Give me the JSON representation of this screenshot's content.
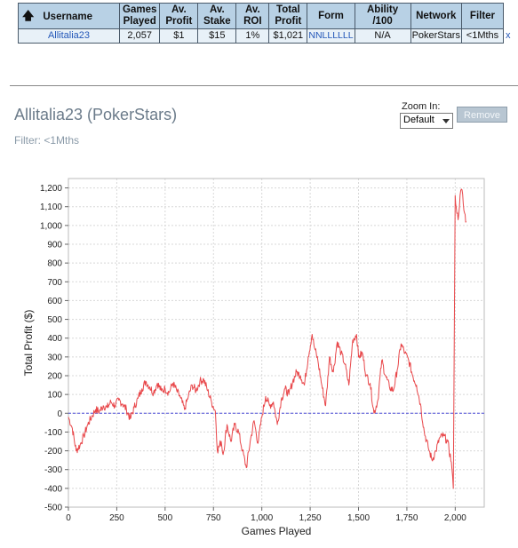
{
  "table": {
    "headers": {
      "username": "Username",
      "games_played": [
        "Games",
        "Played"
      ],
      "av_profit": [
        "Av.",
        "Profit"
      ],
      "av_stake": [
        "Av.",
        "Stake"
      ],
      "av_roi": [
        "Av.",
        "ROI"
      ],
      "total_profit": [
        "Total",
        "Profit"
      ],
      "form": "Form",
      "ability": "Ability /100",
      "network": "Network",
      "filter": "Filter"
    },
    "row": {
      "username": "Allitalia23",
      "games_played": "2,057",
      "av_profit": "$1",
      "av_stake": "$15",
      "av_roi": "1%",
      "total_profit": "$1,021",
      "form": "NNLLLLLL",
      "ability": "N/A",
      "network": "PokerStars",
      "filter": "<1Mths",
      "remove": "x"
    }
  },
  "chart_header": {
    "title": "Allitalia23 (PokerStars)",
    "filter": "Filter: <1Mths"
  },
  "zoom": {
    "label": "Zoom In:",
    "selected": "Default",
    "remove_label": "Remove"
  },
  "colors": {
    "line": "#e8474a",
    "zero_line": "#4a4ad8",
    "grid": "#d8d8d8",
    "table_header": "#b8d1e5"
  },
  "chart_data": {
    "type": "line",
    "xlabel": "Games Played",
    "ylabel": "Total Profit ($)",
    "xlim": [
      0,
      2150
    ],
    "ylim": [
      -500,
      1250
    ],
    "x_ticks": [
      0,
      250,
      500,
      750,
      1000,
      1250,
      1500,
      1750,
      2000
    ],
    "x_tick_labels": [
      "0",
      "250",
      "500",
      "750",
      "1,000",
      "1,250",
      "1,500",
      "1,750",
      "2,000"
    ],
    "y_ticks": [
      -500,
      -400,
      -300,
      -200,
      -100,
      0,
      100,
      200,
      300,
      400,
      500,
      600,
      700,
      800,
      900,
      1000,
      1100,
      1200
    ],
    "y_tick_labels": [
      "-500",
      "-400",
      "-300",
      "-200",
      "-100",
      "0",
      "100",
      "200",
      "300",
      "400",
      "500",
      "600",
      "700",
      "800",
      "900",
      "1,000",
      "1,100",
      "1,200"
    ],
    "grid": true,
    "zero_line": true,
    "series": [
      {
        "x": [
          0,
          20,
          40,
          60,
          80,
          100,
          120,
          140,
          160,
          180,
          200,
          220,
          240,
          260,
          280,
          300,
          320,
          340,
          360,
          380,
          400,
          420,
          440,
          460,
          480,
          500,
          520,
          540,
          560,
          580,
          600,
          620,
          640,
          660,
          680,
          700,
          720,
          740,
          760,
          770,
          790,
          800,
          820,
          840,
          860,
          880,
          900,
          920,
          940,
          960,
          980,
          1000,
          1020,
          1040,
          1060,
          1080,
          1100,
          1120,
          1140,
          1160,
          1180,
          1200,
          1220,
          1240,
          1260,
          1270,
          1290,
          1310,
          1330,
          1350,
          1370,
          1390,
          1410,
          1430,
          1450,
          1470,
          1490,
          1500,
          1520,
          1540,
          1560,
          1580,
          1600,
          1620,
          1640,
          1660,
          1680,
          1700,
          1720,
          1740,
          1760,
          1780,
          1800,
          1820,
          1840,
          1860,
          1880,
          1900,
          1920,
          1940,
          1960,
          1980,
          1990,
          2000,
          2005,
          2015,
          2025,
          2035,
          2045,
          2057
        ],
        "y": [
          -20,
          -80,
          -200,
          -170,
          -120,
          -60,
          -20,
          20,
          10,
          40,
          30,
          60,
          40,
          70,
          50,
          20,
          -30,
          30,
          80,
          130,
          170,
          140,
          110,
          160,
          120,
          130,
          110,
          160,
          120,
          80,
          20,
          90,
          150,
          120,
          170,
          180,
          120,
          60,
          10,
          -200,
          -150,
          -220,
          -60,
          -150,
          -60,
          -100,
          -200,
          -290,
          -150,
          -40,
          -160,
          -20,
          90,
          40,
          60,
          -60,
          70,
          130,
          100,
          170,
          220,
          200,
          150,
          300,
          420,
          360,
          280,
          150,
          40,
          300,
          220,
          380,
          320,
          260,
          150,
          390,
          420,
          300,
          320,
          200,
          160,
          0,
          70,
          280,
          200,
          140,
          120,
          230,
          370,
          320,
          280,
          200,
          150,
          50,
          -100,
          -180,
          -250,
          -200,
          -130,
          -120,
          -150,
          -260,
          -400,
          1160,
          1100,
          1030,
          1160,
          1190,
          1080,
          1021
        ]
      }
    ]
  }
}
